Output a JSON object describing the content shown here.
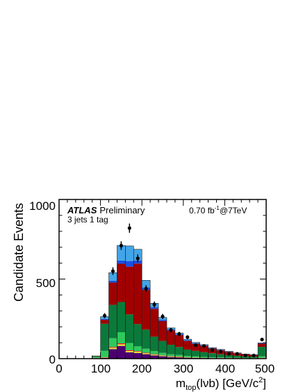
{
  "chart_data": {
    "type": "bar",
    "stacked": true,
    "xlabel_main": "m",
    "xlabel_sub": "top",
    "xlabel_paren": "(lνb) [GeV/c",
    "xlabel_sup": "2",
    "xlabel_close": "]",
    "ylabel": "Candidate Events",
    "xlim": [
      0,
      500
    ],
    "ylim": [
      0,
      1000
    ],
    "xticks": [
      "0",
      "100",
      "200",
      "300",
      "400",
      "500"
    ],
    "yticks": [
      "0",
      "500",
      "1000"
    ],
    "atlas": "ATLAS",
    "preliminary": "Preliminary",
    "channel": "3 jets 1 tag",
    "lumi_value": "0.70 fb",
    "lumi_exp": "-1",
    "lumi_energy": "@7TeV",
    "bin_edges": [
      80,
      100,
      120,
      140,
      160,
      180,
      200,
      220,
      240,
      260,
      280,
      300,
      320,
      340,
      360,
      380,
      400,
      420,
      440,
      460,
      480,
      500
    ],
    "series": [
      {
        "color": "#4c0070",
        "values": [
          3,
          5,
          60,
          80,
          40,
          35,
          28,
          20,
          15,
          10,
          8,
          6,
          5,
          4,
          3,
          3,
          2,
          2,
          1,
          1,
          3
        ]
      },
      {
        "color": "#e8e83c",
        "values": [
          1,
          2,
          8,
          10,
          8,
          8,
          6,
          5,
          4,
          3,
          3,
          2,
          2,
          1,
          1,
          1,
          1,
          1,
          1,
          1,
          2
        ]
      },
      {
        "color": "#e8142a",
        "values": [
          1,
          2,
          5,
          6,
          5,
          4,
          3,
          3,
          2,
          2,
          2,
          1,
          1,
          1,
          1,
          1,
          1,
          1,
          1,
          1,
          1
        ]
      },
      {
        "color": "#2ec95a",
        "values": [
          5,
          40,
          55,
          70,
          45,
          30,
          25,
          20,
          15,
          12,
          10,
          8,
          6,
          5,
          4,
          3,
          3,
          2,
          2,
          2,
          8
        ]
      },
      {
        "color": "#0a7a3a",
        "values": [
          5,
          170,
          210,
          190,
          180,
          140,
          120,
          90,
          75,
          60,
          50,
          40,
          35,
          30,
          25,
          20,
          15,
          12,
          10,
          8,
          60
        ]
      },
      {
        "color": "#a00000",
        "values": [
          2,
          25,
          140,
          240,
          300,
          380,
          250,
          175,
          125,
          90,
          75,
          55,
          45,
          40,
          30,
          25,
          20,
          15,
          12,
          10,
          20
        ]
      },
      {
        "color": "#1a4fe0",
        "values": [
          0,
          5,
          12,
          20,
          35,
          20,
          15,
          10,
          8,
          6,
          5,
          4,
          3,
          3,
          2,
          2,
          2,
          1,
          1,
          1,
          2
        ]
      },
      {
        "color": "#42a5e8",
        "values": [
          0,
          15,
          50,
          95,
          95,
          70,
          45,
          25,
          15,
          10,
          8,
          6,
          5,
          4,
          3,
          3,
          2,
          2,
          1,
          1,
          3
        ]
      }
    ],
    "data_points": {
      "x": [
        110,
        130,
        150,
        170,
        190,
        210,
        230,
        250,
        270,
        290,
        310,
        330,
        350,
        370,
        390,
        410,
        430,
        450,
        470,
        490
      ],
      "y": [
        270,
        550,
        710,
        820,
        630,
        440,
        340,
        265,
        180,
        155,
        135,
        85,
        80,
        55,
        45,
        30,
        30,
        20,
        20,
        120
      ],
      "err": [
        16,
        24,
        27,
        29,
        25,
        21,
        19,
        16,
        14,
        13,
        12,
        10,
        9,
        8,
        7,
        6,
        6,
        5,
        5,
        11
      ]
    }
  }
}
